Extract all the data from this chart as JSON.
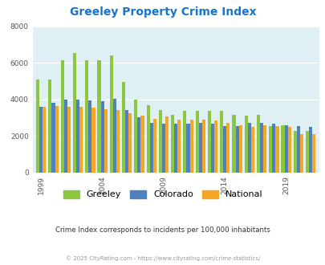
{
  "title": "Greeley Property Crime Index",
  "title_color": "#1874CD",
  "years": [
    1999,
    2000,
    2001,
    2002,
    2003,
    2004,
    2005,
    2006,
    2007,
    2008,
    2009,
    2010,
    2011,
    2012,
    2013,
    2014,
    2015,
    2016,
    2017,
    2018,
    2019,
    2020,
    2021
  ],
  "greeley": [
    5100,
    5100,
    6150,
    6550,
    6150,
    6150,
    6400,
    4950,
    4000,
    3700,
    3400,
    3150,
    3350,
    3350,
    3350,
    3350,
    3150,
    3100,
    3150,
    2550,
    2600,
    2250,
    2250
  ],
  "colorado": [
    3600,
    3800,
    4000,
    4000,
    3950,
    3900,
    4050,
    3400,
    3000,
    2700,
    2650,
    2650,
    2650,
    2700,
    2650,
    2550,
    2550,
    2700,
    2700,
    2650,
    2600,
    2550,
    2500
  ],
  "national": [
    3600,
    3650,
    3600,
    3600,
    3550,
    3450,
    3400,
    3250,
    3100,
    2950,
    3050,
    2900,
    2900,
    2900,
    2850,
    2700,
    2600,
    2500,
    2600,
    2550,
    2500,
    2100,
    2100
  ],
  "greeley_color": "#8DC63F",
  "colorado_color": "#4F81BD",
  "national_color": "#F5A623",
  "fig_bg_color": "#FFFFFF",
  "plot_bg": "#DFF0F5",
  "ylim": [
    0,
    8000
  ],
  "yticks": [
    0,
    2000,
    4000,
    6000,
    8000
  ],
  "xlabel_ticks": [
    1999,
    2004,
    2009,
    2014,
    2019
  ],
  "subtitle": "Crime Index corresponds to incidents per 100,000 inhabitants",
  "subtitle_color": "#333333",
  "footer": "© 2025 CityRating.com - https://www.cityrating.com/crime-statistics/",
  "footer_color": "#999999",
  "legend_labels": [
    "Greeley",
    "Colorado",
    "National"
  ]
}
